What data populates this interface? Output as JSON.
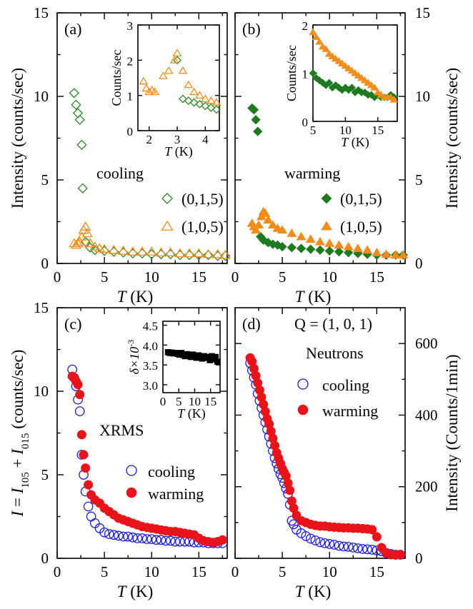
{
  "chart_data": [
    {
      "type": "scatter",
      "panel_label": "(a)",
      "xlabel_var": "T",
      "xlabel_unit": " (K)",
      "ylabel": "Intensity (counts/sec)",
      "xlim": [
        0,
        18
      ],
      "ylim": [
        0,
        15
      ],
      "xticks": [
        0,
        5,
        10,
        15
      ],
      "yticks": [
        0,
        5,
        10,
        15
      ],
      "legend_title": "cooling",
      "legend_position": "center-right",
      "series": [
        {
          "name": "(0,1,5)",
          "marker": "diamond-open",
          "color": "#2a8a22",
          "x": [
            1.8,
            2.0,
            2.2,
            2.4,
            2.6,
            2.7,
            3.0,
            3.5,
            4,
            5,
            6,
            7,
            8,
            9,
            10,
            11,
            12,
            13,
            14,
            15,
            16,
            17,
            17.8
          ],
          "y": [
            10.2,
            9.5,
            9.0,
            8.6,
            7.1,
            4.5,
            1.3,
            0.95,
            0.8,
            0.75,
            0.7,
            0.65,
            0.6,
            0.6,
            0.55,
            0.55,
            0.55,
            0.5,
            0.5,
            0.5,
            0.5,
            0.45,
            0.45
          ]
        },
        {
          "name": "(1,0,5)",
          "marker": "triangle-open",
          "color": "#f28c1c",
          "x": [
            1.8,
            2.0,
            2.2,
            2.4,
            2.6,
            2.8,
            3.0,
            3.2,
            3.5,
            4,
            4.5,
            5,
            6,
            7,
            8,
            9,
            10,
            11,
            12,
            13,
            14,
            15,
            16,
            17,
            17.8
          ],
          "y": [
            1.2,
            1.1,
            1.2,
            1.3,
            1.6,
            2.0,
            2.2,
            1.8,
            1.2,
            1.0,
            0.9,
            0.85,
            0.8,
            0.75,
            0.7,
            0.7,
            0.7,
            0.65,
            0.65,
            0.6,
            0.6,
            0.6,
            0.55,
            0.55,
            0.5
          ]
        }
      ],
      "inset": {
        "ylabel": "Counts/sec",
        "xlabel_var": "T",
        "xlabel_unit": " (K)",
        "xlim": [
          1.6,
          4.5
        ],
        "ylim": [
          0,
          3
        ],
        "xticks": [
          2,
          3,
          4
        ],
        "yticks": [
          0,
          1,
          2,
          3
        ],
        "series": [
          {
            "name": "(0,1,5)",
            "marker": "diamond-open",
            "color": "#2a8a22",
            "x": [
              3.0,
              3.2,
              3.4,
              3.6,
              3.8,
              4.0,
              4.2,
              4.4
            ],
            "y": [
              2.0,
              0.9,
              0.85,
              0.8,
              0.75,
              0.7,
              0.65,
              0.6
            ]
          },
          {
            "name": "(1,0,5)",
            "marker": "triangle-open",
            "color": "#f28c1c",
            "x": [
              1.8,
              1.9,
              2.0,
              2.1,
              2.2,
              2.5,
              2.7,
              2.9,
              3.0,
              3.2,
              3.4,
              3.6,
              3.8,
              4.0,
              4.2,
              4.4
            ],
            "y": [
              1.4,
              1.2,
              1.1,
              1.15,
              1.1,
              1.55,
              1.7,
              2.0,
              2.2,
              1.7,
              1.3,
              1.1,
              1.0,
              0.9,
              0.85,
              0.8
            ]
          }
        ]
      }
    },
    {
      "type": "scatter",
      "panel_label": "(b)",
      "xlabel_var": "T",
      "xlabel_unit": " (K)",
      "ylabel": "Intensity (counts/sec)",
      "xlim": [
        0,
        18
      ],
      "ylim": [
        0,
        15
      ],
      "xticks": [
        0,
        5,
        10,
        15
      ],
      "yticks": [
        0,
        5,
        10,
        15
      ],
      "legend_title": "warming",
      "legend_position": "center-right",
      "series": [
        {
          "name": "(0,1,5)",
          "marker": "diamond-filled",
          "color": "#1e7a1e",
          "x": [
            1.8,
            2.0,
            2.2,
            2.4,
            2.7,
            3.0,
            3.5,
            4,
            4.5,
            5,
            6,
            7,
            8,
            9,
            10,
            11,
            12,
            13,
            14,
            15,
            16,
            17,
            17.8
          ],
          "y": [
            9.3,
            9.2,
            8.6,
            7.9,
            1.6,
            1.4,
            1.25,
            1.15,
            1.1,
            1.0,
            0.95,
            0.9,
            0.85,
            0.8,
            0.75,
            0.7,
            0.65,
            0.6,
            0.55,
            0.5,
            0.5,
            0.5,
            0.5
          ]
        },
        {
          "name": "(1,0,5)",
          "marker": "triangle-filled",
          "color": "#f28c1c",
          "x": [
            1.8,
            2.0,
            2.2,
            2.5,
            2.8,
            3.0,
            3.2,
            3.5,
            4,
            4.5,
            5,
            6,
            7,
            8,
            9,
            10,
            11,
            12,
            13,
            14,
            15,
            16,
            17,
            17.8
          ],
          "y": [
            2.4,
            2.2,
            2.0,
            2.3,
            2.8,
            3.1,
            3.0,
            2.6,
            2.3,
            2.1,
            2.0,
            1.8,
            1.6,
            1.45,
            1.3,
            1.2,
            1.1,
            1.0,
            0.9,
            0.8,
            0.65,
            0.55,
            0.5,
            0.5
          ]
        }
      ],
      "inset": {
        "ylabel": "Counts/sec",
        "xlabel_var": "T",
        "xlabel_unit": " (K)",
        "xlim": [
          5,
          18
        ],
        "ylim": [
          0,
          2
        ],
        "xticks": [
          5,
          10,
          15
        ],
        "yticks": [
          0,
          1,
          2
        ],
        "series": [
          {
            "name": "(0,1,5)",
            "marker": "diamond-filled",
            "color": "#1e7a1e",
            "x": [
              5,
              5.5,
              6,
              6.5,
              7,
              7.5,
              8,
              8.5,
              9,
              9.5,
              10,
              10.5,
              11,
              11.5,
              12,
              12.5,
              13,
              13.5,
              14,
              14.5,
              15,
              15.5,
              16,
              16.5,
              17,
              17.5
            ],
            "y": [
              1.0,
              0.9,
              0.85,
              0.8,
              0.75,
              0.8,
              0.7,
              0.75,
              0.7,
              0.65,
              0.7,
              0.65,
              0.7,
              0.6,
              0.65,
              0.6,
              0.6,
              0.55,
              0.55,
              0.5,
              0.55,
              0.5,
              0.5,
              0.5,
              0.55,
              0.5
            ]
          },
          {
            "name": "(1,0,5)",
            "marker": "triangle-filled",
            "color": "#f28c1c",
            "x": [
              5,
              5.5,
              6,
              6.5,
              7,
              7.5,
              8,
              8.5,
              9,
              9.5,
              10,
              10.5,
              11,
              11.5,
              12,
              12.5,
              13,
              13.5,
              14,
              14.5,
              15,
              15.5,
              16,
              16.5,
              17,
              17.5
            ],
            "y": [
              1.85,
              1.75,
              1.65,
              1.55,
              1.5,
              1.4,
              1.35,
              1.3,
              1.25,
              1.2,
              1.15,
              1.1,
              1.05,
              1.0,
              0.95,
              0.9,
              0.85,
              0.8,
              0.75,
              0.7,
              0.6,
              0.55,
              0.5,
              0.5,
              0.5,
              0.45
            ]
          }
        ]
      }
    },
    {
      "type": "scatter",
      "panel_label": "(c)",
      "xlabel_var": "T",
      "xlabel_unit": " (K)",
      "ylabel_parts": [
        "I",
        " = ",
        "I",
        "105",
        " + ",
        "I",
        "015",
        " (counts/sec)"
      ],
      "xlim": [
        0,
        18
      ],
      "ylim": [
        0,
        15
      ],
      "xticks": [
        0,
        5,
        10,
        15
      ],
      "yticks": [
        0,
        5,
        10,
        15
      ],
      "legend_title": "XRMS",
      "legend_position": "center-right",
      "series": [
        {
          "name": "cooling",
          "marker": "circle-open",
          "color": "#1a1adc",
          "x": [
            1.6,
            1.8,
            2.0,
            2.2,
            2.4,
            2.6,
            2.8,
            3.0,
            3.3,
            3.6,
            4.0,
            4.5,
            5,
            5.5,
            6,
            6.5,
            7,
            7.5,
            8,
            8.5,
            9,
            9.5,
            10,
            10.5,
            11,
            11.5,
            12,
            12.5,
            13,
            13.5,
            14,
            14.5,
            15,
            15.5,
            16,
            16.5,
            17,
            17.5
          ],
          "y": [
            11.3,
            10.8,
            10.3,
            9.5,
            8.8,
            6.2,
            5.0,
            4.0,
            3.1,
            2.5,
            2.1,
            1.8,
            1.55,
            1.45,
            1.4,
            1.35,
            1.3,
            1.3,
            1.25,
            1.2,
            1.2,
            1.15,
            1.15,
            1.1,
            1.1,
            1.05,
            1.05,
            1.0,
            1.0,
            1.0,
            1.0,
            0.95,
            0.95,
            0.95,
            0.9,
            0.9,
            0.9,
            0.9
          ]
        },
        {
          "name": "warming",
          "marker": "circle-filled",
          "color": "#e8141a",
          "x": [
            1.6,
            1.8,
            2.0,
            2.2,
            2.4,
            2.6,
            2.8,
            3.0,
            3.3,
            3.6,
            4.0,
            4.5,
            5,
            5.5,
            6,
            6.5,
            7,
            7.5,
            8,
            8.5,
            9,
            9.5,
            10,
            10.5,
            11,
            11.5,
            12,
            12.5,
            13,
            13.5,
            14,
            14.5,
            15,
            15.5,
            16,
            16.5,
            17,
            17.5
          ],
          "y": [
            10.9,
            10.8,
            10.6,
            10.4,
            9.8,
            7.4,
            6.2,
            5.4,
            4.4,
            3.8,
            3.5,
            3.3,
            3.0,
            2.8,
            2.6,
            2.4,
            2.3,
            2.2,
            2.1,
            2.0,
            1.9,
            1.85,
            1.8,
            1.75,
            1.7,
            1.65,
            1.6,
            1.6,
            1.55,
            1.5,
            1.45,
            1.4,
            1.2,
            1.05,
            1.0,
            0.95,
            1.0,
            1.1
          ]
        }
      ],
      "inset": {
        "ylabel_base": "δ×10",
        "ylabel_sup": "-3",
        "xlabel_var": "T",
        "xlabel_unit": " (K)",
        "xlim": [
          0,
          18
        ],
        "ylim": [
          2.8,
          4.6
        ],
        "xticks": [
          0,
          5,
          10,
          15
        ],
        "yticks": [
          3.0,
          3.5,
          4.0,
          4.5
        ],
        "series": [
          {
            "name": "delta",
            "marker": "square-filled",
            "color": "#000000",
            "x": [
              1.6,
              2.2,
              2.8,
              3.4,
              4.0,
              4.6,
              5.2,
              5.8,
              6.4,
              7.0,
              7.6,
              8.2,
              8.8,
              9.4,
              10.0,
              10.6,
              11.2,
              11.8,
              12.4,
              13.0,
              13.6,
              14.2,
              14.8,
              15.4,
              16.0,
              16.6,
              17.2
            ],
            "y": [
              3.82,
              3.8,
              3.81,
              3.79,
              3.8,
              3.78,
              3.76,
              3.8,
              3.75,
              3.72,
              3.77,
              3.74,
              3.7,
              3.76,
              3.72,
              3.68,
              3.74,
              3.7,
              3.66,
              3.72,
              3.7,
              3.68,
              3.62,
              3.72,
              3.64,
              3.7,
              3.58
            ]
          }
        ]
      }
    },
    {
      "type": "scatter",
      "panel_label": "(d)",
      "q_label": "Q = (1, 0, 1)",
      "legend_title": "Neutrons",
      "legend_position": "top-right",
      "xlabel_var": "T",
      "xlabel_unit": " (K)",
      "ylabel": "Intensity (Counts/1min)",
      "xlim": [
        0,
        18
      ],
      "ylim": [
        0,
        700
      ],
      "xticks": [
        0,
        5,
        10,
        15
      ],
      "yticks": [
        0,
        200,
        400,
        600
      ],
      "series": [
        {
          "name": "cooling",
          "marker": "circle-open",
          "color": "#1a1adc",
          "x": [
            1.6,
            1.8,
            2.0,
            2.2,
            2.4,
            2.6,
            2.8,
            3.0,
            3.2,
            3.4,
            3.6,
            3.8,
            4.0,
            4.2,
            4.4,
            4.6,
            4.8,
            5.0,
            5.2,
            5.4,
            5.6,
            5.8,
            6.0,
            6.2,
            6.5,
            7,
            7.5,
            8,
            8.5,
            9,
            9.5,
            10,
            10.5,
            11,
            11.5,
            12,
            12.5,
            13,
            13.5,
            14,
            14.5,
            15,
            15.5,
            16,
            16.5,
            17,
            17.5
          ],
          "y": [
            545,
            525,
            505,
            485,
            460,
            440,
            420,
            400,
            380,
            360,
            340,
            320,
            300,
            280,
            265,
            250,
            235,
            225,
            210,
            195,
            180,
            150,
            105,
            95,
            80,
            70,
            62,
            55,
            50,
            45,
            42,
            40,
            38,
            35,
            33,
            32,
            30,
            28,
            26,
            25,
            24,
            22,
            20,
            15,
            12,
            10,
            10
          ]
        },
        {
          "name": "warming",
          "marker": "circle-filled",
          "color": "#e8141a",
          "x": [
            1.6,
            1.8,
            2.0,
            2.2,
            2.4,
            2.6,
            2.8,
            3.0,
            3.2,
            3.4,
            3.6,
            3.8,
            4.0,
            4.2,
            4.4,
            4.6,
            4.8,
            5.0,
            5.2,
            5.4,
            5.6,
            5.8,
            6.0,
            6.2,
            6.5,
            7,
            7.5,
            8,
            8.5,
            9,
            9.5,
            10,
            10.5,
            11,
            11.5,
            12,
            12.5,
            13,
            13.5,
            14,
            14.5,
            15,
            15.5,
            16,
            16.5,
            17,
            17.5
          ],
          "y": [
            560,
            550,
            530,
            510,
            490,
            470,
            450,
            430,
            410,
            390,
            375,
            355,
            335,
            315,
            295,
            280,
            265,
            250,
            240,
            230,
            210,
            190,
            160,
            140,
            120,
            105,
            100,
            95,
            92,
            90,
            90,
            88,
            87,
            86,
            85,
            85,
            84,
            84,
            83,
            82,
            80,
            60,
            30,
            15,
            10,
            10,
            10
          ]
        }
      ]
    }
  ]
}
